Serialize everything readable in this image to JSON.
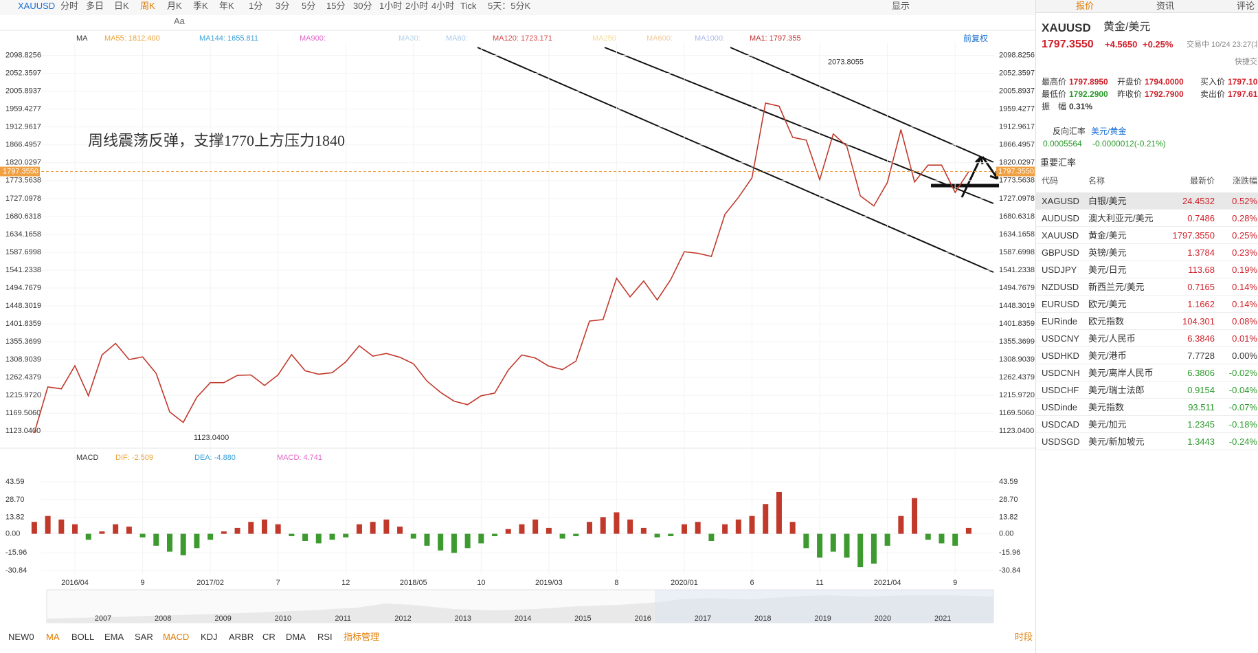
{
  "toolbar": {
    "symbol": "XAUUSD",
    "periods": [
      "分时",
      "多日",
      "日K",
      "周K",
      "月K",
      "季K",
      "年K",
      "1分",
      "3分",
      "5分",
      "15分",
      "30分",
      "1小时",
      "2小时",
      "4小时",
      "Tick",
      "5天：5分K"
    ],
    "active_period_index": 3,
    "display": "显示",
    "font_tool": "Aa"
  },
  "indicator_bar": {
    "items": [
      {
        "label": "MA",
        "color": "#333333"
      },
      {
        "label": "MA55: 1812.400",
        "color": "#e8a33a"
      },
      {
        "label": "MA144: 1655.811",
        "color": "#3aa0d8"
      },
      {
        "label": "MA900:",
        "color": "#e066c8"
      },
      {
        "label": "MA30:",
        "color": "#b8d4ec"
      },
      {
        "label": "MA60:",
        "color": "#a8c8ec"
      },
      {
        "label": "MA120: 1723.171",
        "color": "#d84848"
      },
      {
        "label": "MA250",
        "color": "#f2dc98"
      },
      {
        "label": "MA600:",
        "color": "#f2cc98"
      },
      {
        "label": "MA1000:",
        "color": "#a8b8ec"
      },
      {
        "label": "MA1: 1797.355",
        "color": "#c03030"
      }
    ],
    "adjust": "前复权"
  },
  "chart_data": [
    {
      "type": "line",
      "ylim": [
        1079,
        2132
      ],
      "yticks": [
        2098.8256,
        2052.3597,
        2005.8937,
        1959.4277,
        1912.9617,
        1866.4957,
        1820.0297,
        1773.5638,
        1727.0978,
        1680.6318,
        1634.1658,
        1587.6998,
        1541.2338,
        1494.7679,
        1448.3019,
        1401.8359,
        1355.3699,
        1308.9039,
        1262.4379,
        {
          "value": 1215.972,
          "label": "1215.9720"
        },
        {
          "value": 1169.506,
          "label": "1169.5060"
        },
        {
          "value": 1123.04,
          "label": "1123.0400"
        }
      ],
      "categories": [
        null,
        null,
        null,
        "2016/04",
        null,
        null,
        null,
        null,
        "9",
        null,
        null,
        null,
        null,
        "2017/02",
        null,
        null,
        null,
        null,
        "7",
        null,
        null,
        null,
        null,
        "12",
        null,
        null,
        null,
        null,
        "2018/05",
        null,
        null,
        null,
        null,
        "10",
        null,
        null,
        null,
        null,
        "2019/03",
        null,
        null,
        null,
        null,
        "8",
        null,
        null,
        null,
        null,
        "2020/01",
        null,
        null,
        null,
        null,
        "6",
        null,
        null,
        null,
        null,
        "11",
        null,
        null,
        null,
        null,
        "2021/04",
        null,
        null,
        null,
        null,
        "9",
        null
      ],
      "series": [
        {
          "color": "#c0392b",
          "values": [
            1118,
            1238,
            1233,
            1293,
            1215,
            1321,
            1351,
            1309,
            1316,
            1273,
            1173,
            1146,
            1211,
            1249,
            1249,
            1268,
            1269,
            1242,
            1269,
            1322,
            1280,
            1271,
            1275,
            1303,
            1345,
            1318,
            1325,
            1315,
            1298,
            1253,
            1224,
            1201,
            1192,
            1215,
            1222,
            1282,
            1321,
            1313,
            1292,
            1283,
            1305,
            1409,
            1413,
            1520,
            1472,
            1513,
            1464,
            1517,
            1589,
            1585,
            1577,
            1686,
            1730,
            1781,
            1975,
            1967,
            1886,
            1879,
            1776,
            1895,
            1863,
            1734,
            1708,
            1769,
            1906,
            1770,
            1814,
            1814,
            1743,
            1797
          ]
        }
      ],
      "annotation": "周线震荡反弹，支撑1770上方压力1840",
      "high": {
        "value": 2073.8055
      },
      "low": {
        "value": 1123.04,
        "label": "1123.0400"
      },
      "current": {
        "value": 1797.355,
        "label": "1797.3550"
      }
    },
    {
      "type": "bar",
      "name": "MACD",
      "legend": [
        {
          "label": "DIF: -2.509",
          "color": "#e8a33a"
        },
        {
          "label": "DEA: -4.880",
          "color": "#3aa0d8"
        },
        {
          "label": "MACD: 4.741",
          "color": "#e066c8"
        }
      ],
      "ylim": [
        -33.7,
        54
      ],
      "yticks": [
        43.59,
        {
          "value": 28.7,
          "label": "28.70"
        },
        13.82,
        {
          "value": 0,
          "label": "0.00"
        },
        -15.96,
        -30.84
      ],
      "up_color": "#c0392b",
      "down_color": "#3c9a2e",
      "values": [
        10,
        15,
        12,
        8,
        -5,
        2,
        8,
        6,
        -3,
        -10,
        -15,
        -18,
        -12,
        -5,
        2,
        5,
        10,
        12,
        8,
        -2,
        -6,
        -8,
        -5,
        -3,
        8,
        10,
        12,
        6,
        -4,
        -10,
        -14,
        -16,
        -12,
        -8,
        -2,
        4,
        8,
        12,
        5,
        -4,
        -2,
        10,
        14,
        18,
        12,
        5,
        -3,
        -2,
        8,
        10,
        -6,
        8,
        12,
        15,
        25,
        35,
        10,
        -12,
        -20,
        -15,
        -20,
        -28,
        -25,
        -10,
        15,
        30,
        -5,
        -8,
        -10,
        5
      ]
    }
  ],
  "navigator": {
    "years": [
      "2007",
      "2008",
      "2009",
      "2010",
      "2011",
      "2012",
      "2013",
      "2014",
      "2015",
      "2016",
      "2017",
      "2018",
      "2019",
      "2020",
      "2021"
    ]
  },
  "bottom_bar": {
    "indicators": [
      "NEW0",
      "MA",
      "BOLL",
      "EMA",
      "SAR",
      "MACD",
      "KDJ",
      "ARBR",
      "CR",
      "DMA",
      "RSI"
    ],
    "active": [
      1,
      5
    ],
    "manage": "指标管理",
    "session": "时段"
  },
  "quote_panel": {
    "tabs": [
      "报价",
      "资讯",
      "评论"
    ],
    "symbol": "XAUUSD",
    "name": "黄金/美元",
    "price": "1797.3550",
    "change": "+4.5650",
    "change_pct": "+0.25%",
    "status": "交易中 10/24 23:27(北",
    "quick_trade": "快捷交",
    "stats": [
      [
        "最高价",
        "1797.8950"
      ],
      [
        "开盘价",
        "1794.0000"
      ],
      [
        "买入价",
        "1797.10"
      ],
      [
        "最低价",
        "1792.2900"
      ],
      [
        "昨收价",
        "1792.7900"
      ],
      [
        "卖出价",
        "1797.61"
      ],
      [
        "振　幅",
        "0.31%"
      ]
    ],
    "reverse": {
      "label": "反向汇率",
      "pair": "美元/黄金",
      "value": "0.0005564",
      "change": "-0.0000012(-0.21%)"
    },
    "section": "重要汇率",
    "headers": [
      "代码",
      "名称",
      "最新价",
      "涨跌幅"
    ],
    "rows": [
      [
        "XAGUSD",
        "白银/美元",
        "24.4532",
        "0.52%"
      ],
      [
        "AUDUSD",
        "澳大利亚元/美元",
        "0.7486",
        "0.28%"
      ],
      [
        "XAUUSD",
        "黄金/美元",
        "1797.3550",
        "0.25%"
      ],
      [
        "GBPUSD",
        "英镑/美元",
        "1.3784",
        "0.23%"
      ],
      [
        "USDJPY",
        "美元/日元",
        "113.68",
        "0.19%"
      ],
      [
        "NZDUSD",
        "新西兰元/美元",
        "0.7165",
        "0.14%"
      ],
      [
        "EURUSD",
        "欧元/美元",
        "1.1662",
        "0.14%"
      ],
      [
        "EURinde",
        "欧元指数",
        "104.301",
        "0.08%"
      ],
      [
        "USDCNY",
        "美元/人民币",
        "6.3846",
        "0.01%"
      ],
      [
        "USDHKD",
        "美元/港币",
        "7.7728",
        "0.00%"
      ],
      [
        "USDCNH",
        "美元/离岸人民币",
        "6.3806",
        "-0.02%"
      ],
      [
        "USDCHF",
        "美元/瑞士法郎",
        "0.9154",
        "-0.04%"
      ],
      [
        "USDinde",
        "美元指数",
        "93.511",
        "-0.07%"
      ],
      [
        "USDCAD",
        "美元/加元",
        "1.2345",
        "-0.18%"
      ],
      [
        "USDSGD",
        "美元/新加坡元",
        "1.3443",
        "-0.24%"
      ]
    ]
  }
}
